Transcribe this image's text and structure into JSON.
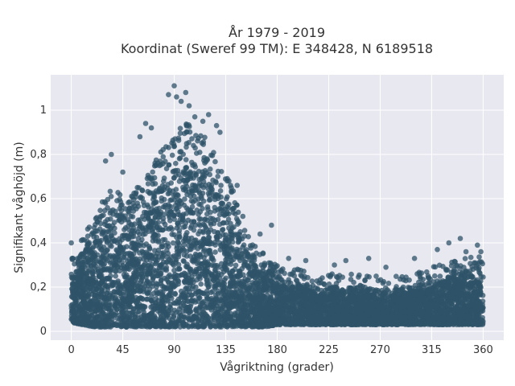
{
  "chart_data": {
    "type": "scatter",
    "title_lines": [
      "År 1979 - 2019",
      "Koordinat (Sweref 99 TM): E 348428, N 6189518"
    ],
    "xlabel": "Vågriktning (grader)",
    "ylabel": "Signifikant våghöjd (m)",
    "xlim": [
      -18,
      378
    ],
    "ylim": [
      -0.04,
      1.16
    ],
    "xticks": [
      0,
      45,
      90,
      135,
      180,
      225,
      270,
      315,
      360
    ],
    "xtick_labels": [
      "0",
      "45",
      "90",
      "135",
      "180",
      "225",
      "270",
      "315",
      "360"
    ],
    "yticks": [
      0,
      0.2,
      0.4,
      0.6,
      0.8,
      1
    ],
    "ytick_labels": [
      "0",
      "0,2",
      "0,4",
      "0,6",
      "0,8",
      "1"
    ],
    "grid": true,
    "background_color": "#e8e8f0",
    "marker_color": "#2f5368",
    "envelope": {
      "x": [
        0,
        10,
        20,
        30,
        40,
        50,
        60,
        70,
        80,
        90,
        100,
        110,
        120,
        130,
        140,
        150,
        160,
        170,
        180,
        190,
        200,
        210,
        220,
        230,
        240,
        250,
        260,
        270,
        280,
        290,
        300,
        310,
        320,
        330,
        340,
        350,
        360
      ],
      "lo": [
        0.04,
        0.03,
        0.02,
        0.02,
        0.02,
        0.02,
        0.02,
        0.02,
        0.02,
        0.02,
        0.02,
        0.02,
        0.02,
        0.02,
        0.02,
        0.02,
        0.02,
        0.02,
        0.03,
        0.03,
        0.03,
        0.03,
        0.03,
        0.03,
        0.03,
        0.03,
        0.03,
        0.03,
        0.03,
        0.03,
        0.03,
        0.03,
        0.03,
        0.03,
        0.03,
        0.03,
        0.03
      ],
      "hi": [
        0.28,
        0.36,
        0.46,
        0.56,
        0.6,
        0.56,
        0.6,
        0.68,
        0.78,
        0.84,
        0.88,
        0.86,
        0.8,
        0.7,
        0.6,
        0.44,
        0.34,
        0.28,
        0.25,
        0.23,
        0.22,
        0.21,
        0.2,
        0.2,
        0.2,
        0.2,
        0.19,
        0.19,
        0.19,
        0.2,
        0.21,
        0.22,
        0.24,
        0.26,
        0.27,
        0.28,
        0.29
      ]
    },
    "outliers": [
      [
        0,
        0.4
      ],
      [
        30,
        0.77
      ],
      [
        35,
        0.8
      ],
      [
        45,
        0.72
      ],
      [
        60,
        0.88
      ],
      [
        65,
        0.94
      ],
      [
        70,
        0.92
      ],
      [
        85,
        1.07
      ],
      [
        90,
        1.11
      ],
      [
        92,
        1.06
      ],
      [
        96,
        1.04
      ],
      [
        100,
        1.08
      ],
      [
        103,
        1.02
      ],
      [
        108,
        0.97
      ],
      [
        115,
        0.95
      ],
      [
        120,
        0.98
      ],
      [
        127,
        0.93
      ],
      [
        130,
        0.9
      ],
      [
        145,
        0.66
      ],
      [
        150,
        0.52
      ],
      [
        165,
        0.44
      ],
      [
        175,
        0.48
      ],
      [
        190,
        0.33
      ],
      [
        205,
        0.32
      ],
      [
        230,
        0.3
      ],
      [
        240,
        0.32
      ],
      [
        260,
        0.33
      ],
      [
        275,
        0.29
      ],
      [
        300,
        0.33
      ],
      [
        320,
        0.37
      ],
      [
        330,
        0.4
      ],
      [
        340,
        0.42
      ],
      [
        345,
        0.36
      ],
      [
        355,
        0.39
      ],
      [
        358,
        0.36
      ]
    ]
  }
}
